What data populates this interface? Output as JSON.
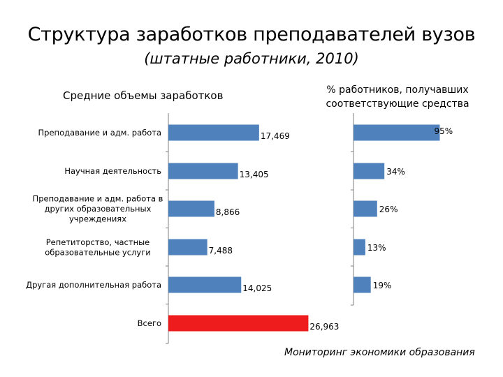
{
  "title": "Структура заработков преподавателей вузов",
  "subtitle": "(штатные работники, 2010)",
  "source": "Мониторинг экономики образования",
  "colors": {
    "bar": "#4f81bd",
    "highlight": "#ee1c1c",
    "axis": "#7f7f7f"
  },
  "chart_data": [
    {
      "type": "bar",
      "orientation": "horizontal",
      "title": "Средние объемы заработков",
      "categories": [
        [
          "Преподавание и адм. работа"
        ],
        [
          "Научная деятельность"
        ],
        [
          "Преподавание и адм. работа в",
          "других образовательных",
          "учреждениях"
        ],
        [
          "Репетиторство, частные",
          "образовательные услуги"
        ],
        [
          "Другая дополнительная работа"
        ],
        [
          "Всего"
        ]
      ],
      "values": [
        17469,
        13405,
        8866,
        7488,
        14025,
        26963
      ],
      "labels": [
        "17,469",
        "13,405",
        "8,866",
        "7,488",
        "14,025",
        "26,963"
      ],
      "highlight_index": 5,
      "xlim": [
        0,
        30000
      ]
    },
    {
      "type": "bar",
      "orientation": "horizontal",
      "title": "% работников, получавших соответствующие средства",
      "title_lines": [
        "% работников, получавших",
        "соответствующие средства"
      ],
      "categories": [
        "Преподавание и адм. работа",
        "Научная деятельность",
        "Преподавание и адм. работа в других образовательных учреждениях",
        "Репетиторство, частные образовательные услуги",
        "Другая дополнительная работа"
      ],
      "values": [
        95,
        34,
        26,
        13,
        19
      ],
      "labels": [
        "95%",
        "34%",
        "26%",
        "13%",
        "19%"
      ],
      "unit": "%",
      "xlim": [
        0,
        100
      ]
    }
  ]
}
